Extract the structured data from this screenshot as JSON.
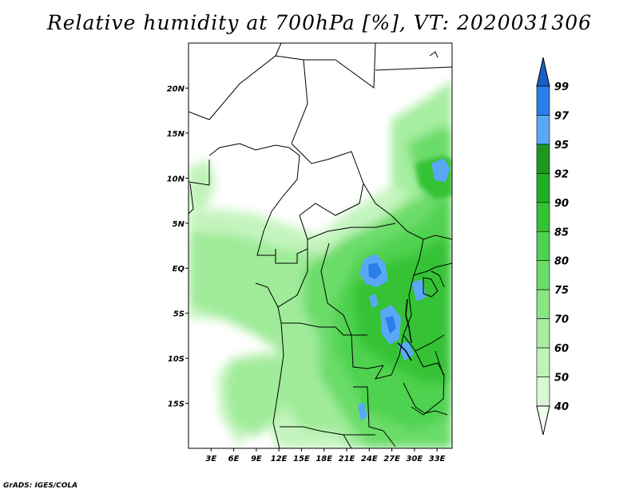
{
  "title": "Relative humidity at 700hPa [%], VT: 2020031306",
  "credit": "GrADS: IGES/COLA",
  "map": {
    "lat_labels": [
      "20N",
      "15N",
      "10N",
      "5N",
      "EQ",
      "5S",
      "10S",
      "15S"
    ],
    "lat_values": [
      20,
      15,
      10,
      5,
      0,
      -5,
      -10,
      -15
    ],
    "lon_labels": [
      "3E",
      "6E",
      "9E",
      "12E",
      "15E",
      "18E",
      "21E",
      "24E",
      "27E",
      "30E",
      "33E"
    ],
    "lon_values": [
      3,
      6,
      9,
      12,
      15,
      18,
      21,
      24,
      27,
      30,
      33
    ],
    "lon_range": [
      0,
      35
    ],
    "lat_range": [
      -20,
      25
    ]
  },
  "colorbar": {
    "levels": [
      "40",
      "50",
      "60",
      "70",
      "75",
      "80",
      "85",
      "90",
      "92",
      "95",
      "97",
      "99"
    ],
    "colors": [
      "#f0fcee",
      "#d7f8d3",
      "#bff3b9",
      "#a6eea0",
      "#8ae585",
      "#6bdc69",
      "#4fd24f",
      "#34c235",
      "#21ad24",
      "#1d9720",
      "#5aa8f5",
      "#2a7ee8",
      "#1a5fc8"
    ]
  }
}
